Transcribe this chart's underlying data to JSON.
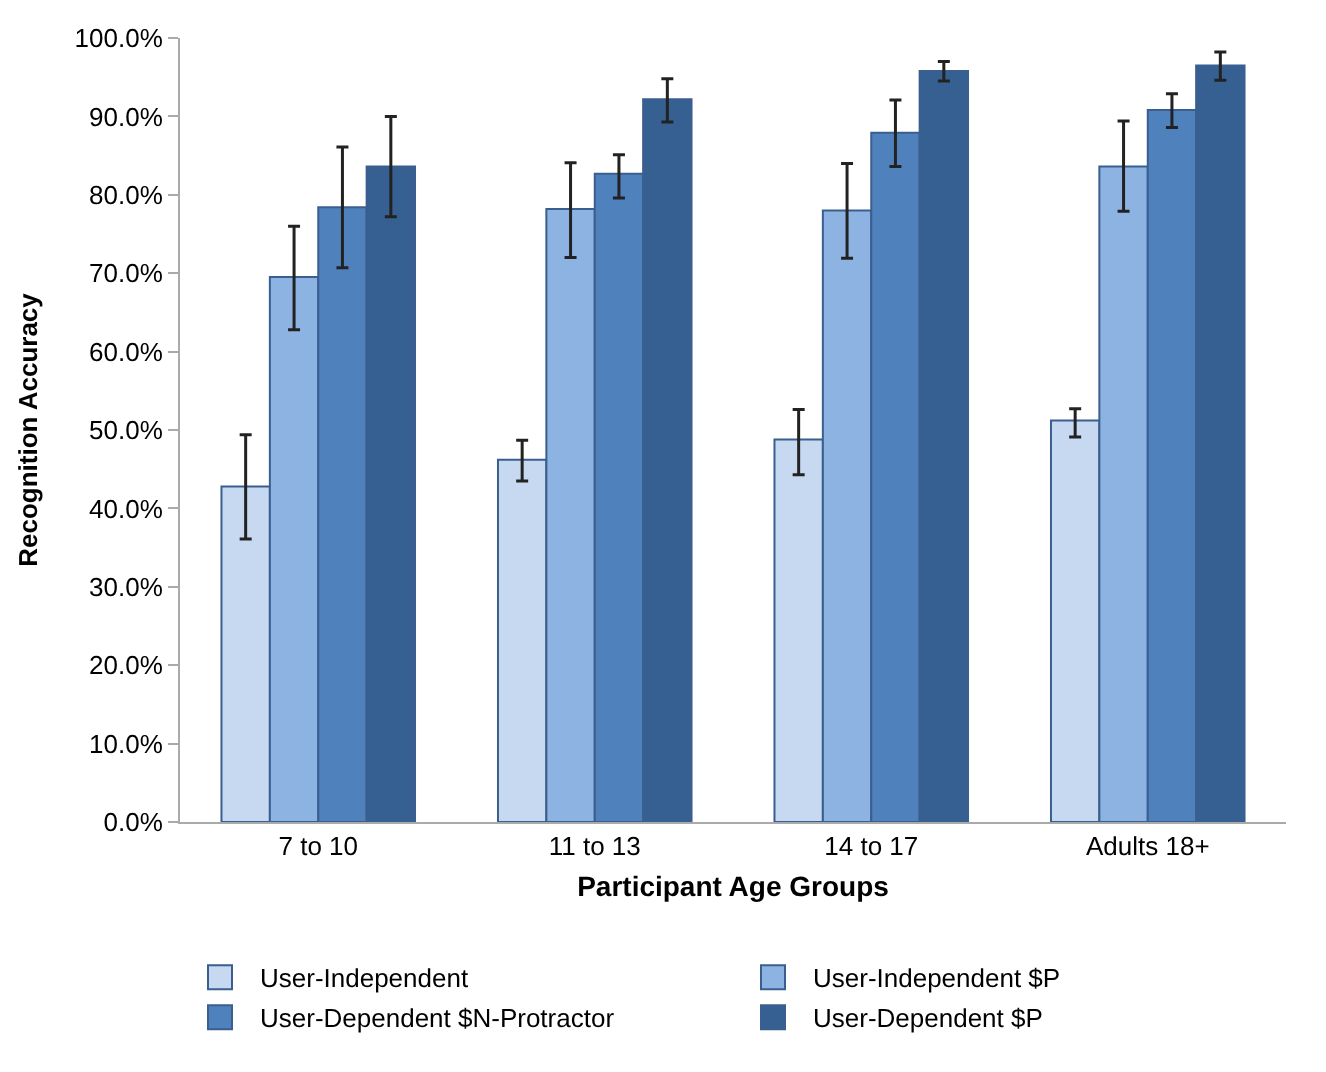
{
  "chart_data": {
    "type": "bar",
    "xlabel": "Participant Age Groups",
    "ylabel": "Recognition Accuracy",
    "categories": [
      "7 to 10",
      "11 to 13",
      "14 to 17",
      "Adults 18+"
    ],
    "series": [
      {
        "name": "User-Independent",
        "color": "#c6d9f1",
        "values": [
          42.8,
          46.2,
          48.8,
          51.2
        ],
        "errors": [
          [
            36.1,
            49.4
          ],
          [
            43.5,
            48.7
          ],
          [
            44.3,
            52.6
          ],
          [
            49.1,
            52.7
          ]
        ]
      },
      {
        "name": "User-Independent $P",
        "color": "#8db3e2",
        "values": [
          69.5,
          78.2,
          78.0,
          83.6
        ],
        "errors": [
          [
            62.8,
            76.0
          ],
          [
            72.0,
            84.1
          ],
          [
            71.9,
            84.0
          ],
          [
            77.9,
            89.4
          ]
        ]
      },
      {
        "name": "User-Dependent $N-Protractor",
        "color": "#4f81bd",
        "values": [
          78.4,
          82.7,
          87.9,
          90.8
        ],
        "errors": [
          [
            70.7,
            86.1
          ],
          [
            79.6,
            85.1
          ],
          [
            83.6,
            92.1
          ],
          [
            88.6,
            92.9
          ]
        ]
      },
      {
        "name": "User-Dependent $P",
        "color": "#376092",
        "values": [
          83.6,
          92.2,
          95.8,
          96.5
        ],
        "errors": [
          [
            77.2,
            90.0
          ],
          [
            89.3,
            94.8
          ],
          [
            94.5,
            97.0
          ],
          [
            94.6,
            98.2
          ]
        ]
      }
    ],
    "ylim": [
      0,
      100
    ],
    "yticks": [
      {
        "value": 0,
        "label": "0.0%"
      },
      {
        "value": 10,
        "label": "10.0%"
      },
      {
        "value": 20,
        "label": "20.0%"
      },
      {
        "value": 30,
        "label": "30.0%"
      },
      {
        "value": 40,
        "label": "40.0%"
      },
      {
        "value": 50,
        "label": "50.0%"
      },
      {
        "value": 60,
        "label": "60.0%"
      },
      {
        "value": 70,
        "label": "70.0%"
      },
      {
        "value": 80,
        "label": "80.0%"
      },
      {
        "value": 90,
        "label": "90.0%"
      },
      {
        "value": 100,
        "label": "100.0%"
      }
    ],
    "legend": "bottom"
  }
}
